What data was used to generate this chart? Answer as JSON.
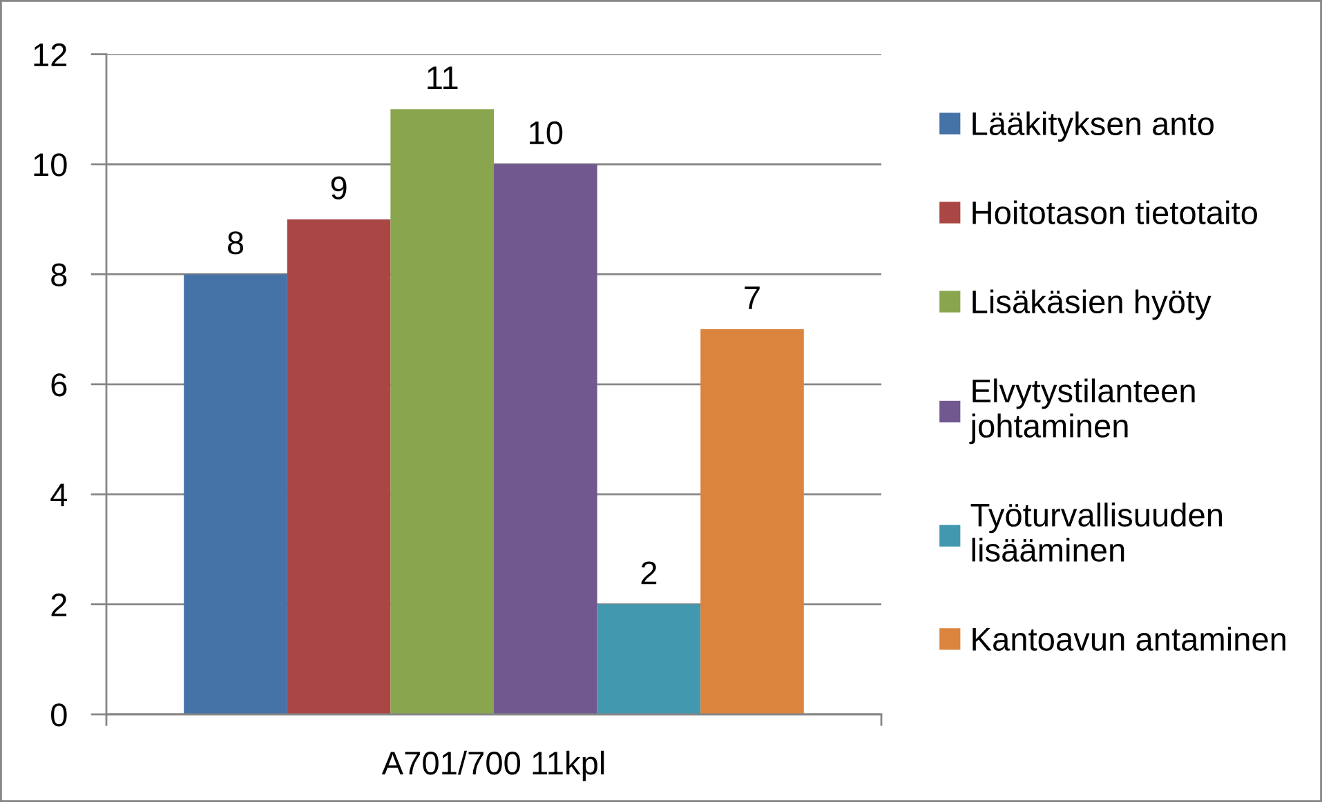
{
  "chart_data": {
    "type": "bar",
    "categories": [
      "A701/700 11kpl"
    ],
    "series": [
      {
        "name": "Lääkityksen anto",
        "color": "#4572a7",
        "values": [
          8
        ]
      },
      {
        "name": "Hoitotason tietotaito",
        "color": "#aa4643",
        "values": [
          9
        ]
      },
      {
        "name": "Lisäkäsien hyöty",
        "color": "#89a54e",
        "values": [
          11
        ]
      },
      {
        "name": "Elvytystilanteen\njohtaminen",
        "color": "#71588f",
        "values": [
          10
        ]
      },
      {
        "name": "Työturvallisuuden\nlisääminen",
        "color": "#4198af",
        "values": [
          2
        ]
      },
      {
        "name": "Kantoavun antaminen",
        "color": "#db843d",
        "values": [
          7
        ]
      }
    ],
    "ylim": [
      0,
      12
    ],
    "yticks": [
      0,
      2,
      4,
      6,
      8,
      10,
      12
    ],
    "grid": "y",
    "legend": "right",
    "data_labels": true
  }
}
